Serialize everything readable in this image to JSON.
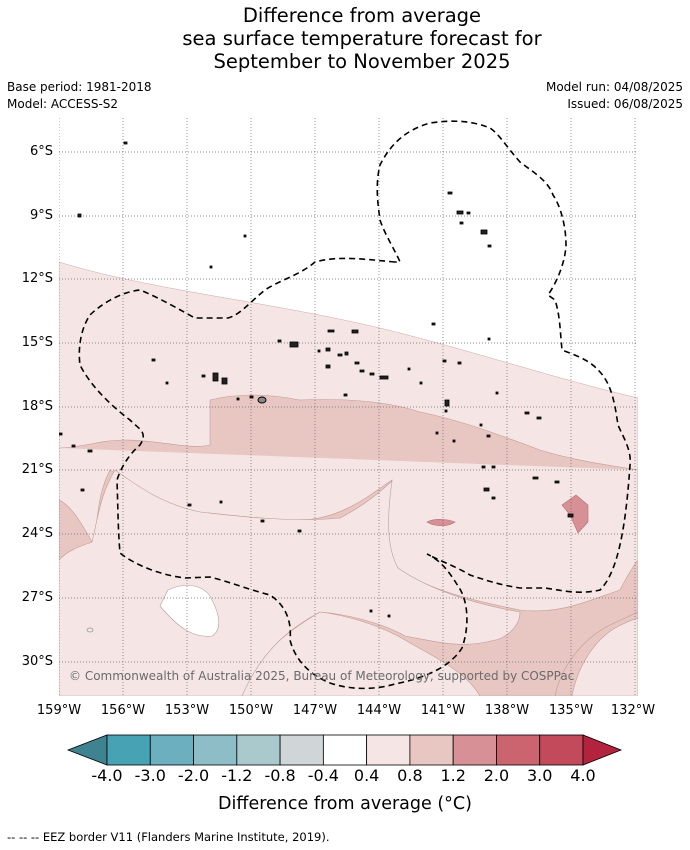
{
  "title_lines": [
    "Difference from average",
    "sea surface temperature forecast for",
    "September to November 2025"
  ],
  "meta_left": [
    "Base period: 1981-2018",
    "Model: ACCESS-S2"
  ],
  "meta_right": [
    "Model run: 04/08/2025",
    "Issued: 06/08/2025"
  ],
  "lat_labels": [
    "6°S",
    "9°S",
    "12°S",
    "15°S",
    "18°S",
    "21°S",
    "24°S",
    "27°S",
    "30°S"
  ],
  "lon_labels": [
    "159°W",
    "156°W",
    "153°W",
    "150°W",
    "147°W",
    "144°W",
    "141°W",
    "138°W",
    "135°W",
    "132°W"
  ],
  "copyright": "© Commonwealth of Australia 2025, Bureau of Meteorology, supported by COSPPac",
  "colorbar": {
    "labels": [
      "-4.0",
      "-3.0",
      "-2.0",
      "-1.2",
      "-0.8",
      "-0.4",
      "0.4",
      "0.8",
      "1.2",
      "2.0",
      "3.0",
      "4.0"
    ],
    "colors": [
      "#3e838f",
      "#47a3b3",
      "#6cb0bf",
      "#8ebdc8",
      "#a9c9cd",
      "#d0d6d8",
      "#ffffff",
      "#f5e6e5",
      "#e8c6c2",
      "#d69096",
      "#cc6470",
      "#c24a5b",
      "#b3233e"
    ],
    "title": "Difference from average (°C)"
  },
  "colors": {
    "anomaly_0_4_to_0_8": "#f5e6e5",
    "anomaly_0_8_to_1_2": "#e8c6c2",
    "anomaly_1_2_to_2_0": "#d69096",
    "neutral": "#ffffff",
    "eez_border": "#000000",
    "grid": "#555555"
  },
  "footnote": "-- -- -- EEZ border V11 (Flanders Marine Institute, 2019)."
}
